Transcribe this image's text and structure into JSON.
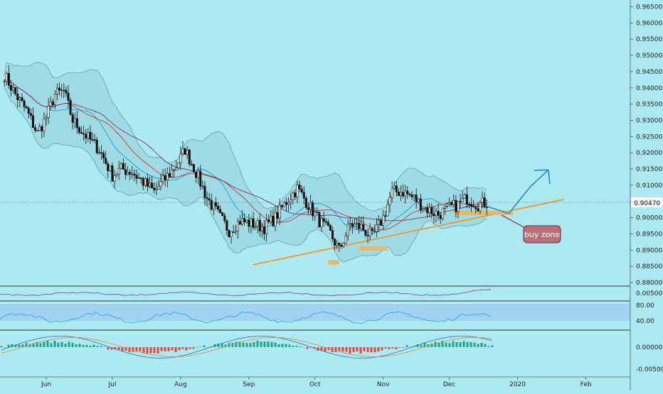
{
  "colors": {
    "background": "#ade9f0",
    "band_fill": "#9fdbe5",
    "band_line": "#6a9fa8",
    "candle": "#111111",
    "sma_fast": "#1e9ad6",
    "sma_mid": "#c0392b",
    "sma_slow": "#7a3b6a",
    "trendline": "#f0962a",
    "zone": "#f0b25a",
    "projection": "#1a8fc7",
    "callout_fill": "#b86f7a",
    "callout_border": "#7a2f3a",
    "price_tag": "#ffffff",
    "rsi_band": "#9cc8f2",
    "rsi_line": "#2aa5d8",
    "macd_up": "#1fa58a",
    "macd_down": "#e8443a",
    "macd_line": "#2c6fc2",
    "signal_line": "#e08a3a",
    "momentum_line": "#8a3f7a",
    "axis_text": "#222222",
    "divider": "#333333"
  },
  "chart_data": [
    {
      "type": "candlestick",
      "panel": "price",
      "y_axis_ticks": [
        "0.96500",
        "0.96000",
        "0.95500",
        "0.95000",
        "0.94500",
        "0.94000",
        "0.93500",
        "0.93000",
        "0.92500",
        "0.92000",
        "0.91500",
        "0.91000",
        "0.90500",
        "0.90000",
        "0.89500",
        "0.89000",
        "0.88500",
        "0.88000"
      ],
      "ylim": [
        0.88,
        0.967
      ],
      "current_price_label": "0.90470",
      "current_price": 0.9047,
      "x_axis_labels": [
        "Jun",
        "Jul",
        "Aug",
        "Sep",
        "Oct",
        "Nov",
        "Dec",
        "2020",
        "Feb"
      ],
      "annotations": {
        "callout_text": "buy zone"
      },
      "close_path": [
        [
          "2019-05-13",
          0.944
        ],
        [
          "2019-05-18",
          0.938
        ],
        [
          "2019-05-23",
          0.933
        ],
        [
          "2019-05-28",
          0.926
        ],
        [
          "2019-06-01",
          0.931
        ],
        [
          "2019-06-05",
          0.938
        ],
        [
          "2019-06-09",
          0.939
        ],
        [
          "2019-06-13",
          0.93
        ],
        [
          "2019-06-18",
          0.926
        ],
        [
          "2019-06-25",
          0.921
        ],
        [
          "2019-07-01",
          0.913
        ],
        [
          "2019-07-05",
          0.915
        ],
        [
          "2019-07-10",
          0.914
        ],
        [
          "2019-07-15",
          0.911
        ],
        [
          "2019-07-20",
          0.908
        ],
        [
          "2019-07-25",
          0.912
        ],
        [
          "2019-07-30",
          0.916
        ],
        [
          "2019-08-03",
          0.921
        ],
        [
          "2019-08-08",
          0.914
        ],
        [
          "2019-08-13",
          0.906
        ],
        [
          "2019-08-18",
          0.901
        ],
        [
          "2019-08-23",
          0.896
        ],
        [
          "2019-08-28",
          0.899
        ],
        [
          "2019-09-03",
          0.898
        ],
        [
          "2019-09-08",
          0.897
        ],
        [
          "2019-09-13",
          0.9
        ],
        [
          "2019-09-18",
          0.905
        ],
        [
          "2019-09-23",
          0.909
        ],
        [
          "2019-09-28",
          0.904
        ],
        [
          "2019-10-03",
          0.899
        ],
        [
          "2019-10-08",
          0.895
        ],
        [
          "2019-10-12",
          0.89
        ],
        [
          "2019-10-17",
          0.898
        ],
        [
          "2019-10-22",
          0.897
        ],
        [
          "2019-10-27",
          0.894
        ],
        [
          "2019-11-01",
          0.9
        ],
        [
          "2019-11-05",
          0.908
        ],
        [
          "2019-11-10",
          0.908
        ],
        [
          "2019-11-15",
          0.906
        ],
        [
          "2019-11-20",
          0.903
        ],
        [
          "2019-11-26",
          0.901
        ],
        [
          "2019-12-01",
          0.903
        ],
        [
          "2019-12-05",
          0.904
        ],
        [
          "2019-12-09",
          0.906
        ],
        [
          "2019-12-14",
          0.904
        ],
        [
          "2019-12-18",
          0.9047
        ]
      ],
      "trendline": [
        [
          "2019-09-03",
          0.8855
        ],
        [
          "2020-01-22",
          0.9056
        ]
      ],
      "zones": [
        {
          "from": "2019-10-07",
          "to": "2019-10-12",
          "y": 0.8862
        },
        {
          "from": "2019-10-21",
          "to": "2019-11-03",
          "y": 0.8905
        },
        {
          "from": "2019-12-03",
          "to": "2019-12-30",
          "y": 0.9015
        }
      ],
      "projection": [
        [
          "2019-12-18",
          0.9035
        ],
        [
          "2019-12-28",
          0.9013
        ],
        [
          "2020-01-07",
          0.9097
        ],
        [
          "2020-01-15",
          0.9147
        ],
        [
          "2020-01-16",
          0.9105
        ]
      ]
    },
    {
      "type": "line",
      "panel": "momentum",
      "y_axis_ticks": [
        "0.00500"
      ],
      "values_desc": "oscillating line, rising at end"
    },
    {
      "type": "line",
      "panel": "rsi",
      "y_axis_ticks": [
        "80.00",
        "40.00"
      ],
      "ylim": [
        20,
        85
      ]
    },
    {
      "type": "bar",
      "panel": "macd",
      "y_axis_ticks": [
        "0.00000",
        "-0.00500"
      ],
      "ylim": [
        -0.0075,
        0.0035
      ]
    }
  ]
}
